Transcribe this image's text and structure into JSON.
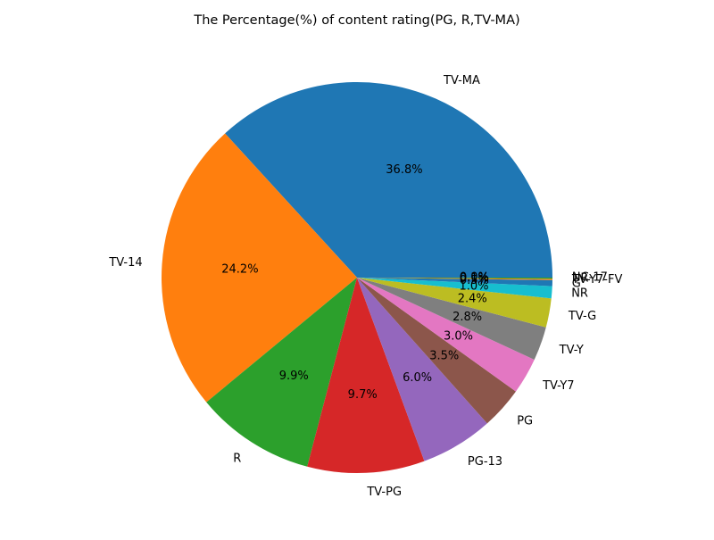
{
  "chart_data": {
    "type": "pie",
    "title": "The Percentage(%) of content rating(PG, R,TV-MA)",
    "start_angle_deg": 0,
    "direction": "counterclockwise",
    "labels": [
      "TV-MA",
      "TV-14",
      "R",
      "TV-PG",
      "PG-13",
      "PG",
      "TV-Y7",
      "TV-Y",
      "TV-G",
      "NR",
      "G",
      "TV-Y7-FV",
      "UR",
      "NC-17"
    ],
    "values": [
      36.8,
      24.2,
      9.9,
      9.7,
      6.0,
      3.5,
      3.0,
      2.8,
      2.4,
      1.0,
      0.5,
      0.1,
      0.1,
      0.0
    ],
    "percent_labels": [
      "36.8%",
      "24.2%",
      "9.9%",
      "9.7%",
      "6.0%",
      "3.5%",
      "3.0%",
      "2.8%",
      "2.4%",
      "1.0%",
      "0.5%",
      "0.1%",
      "0.1%",
      "0.0%"
    ],
    "colors": [
      "#1f77b4",
      "#ff7f0e",
      "#2ca02c",
      "#d62728",
      "#9467bd",
      "#8c564b",
      "#e377c2",
      "#7f7f7f",
      "#bcbd22",
      "#17becf",
      "#1f77b4",
      "#ff7f0e",
      "#2ca02c",
      "#d62728"
    ]
  }
}
